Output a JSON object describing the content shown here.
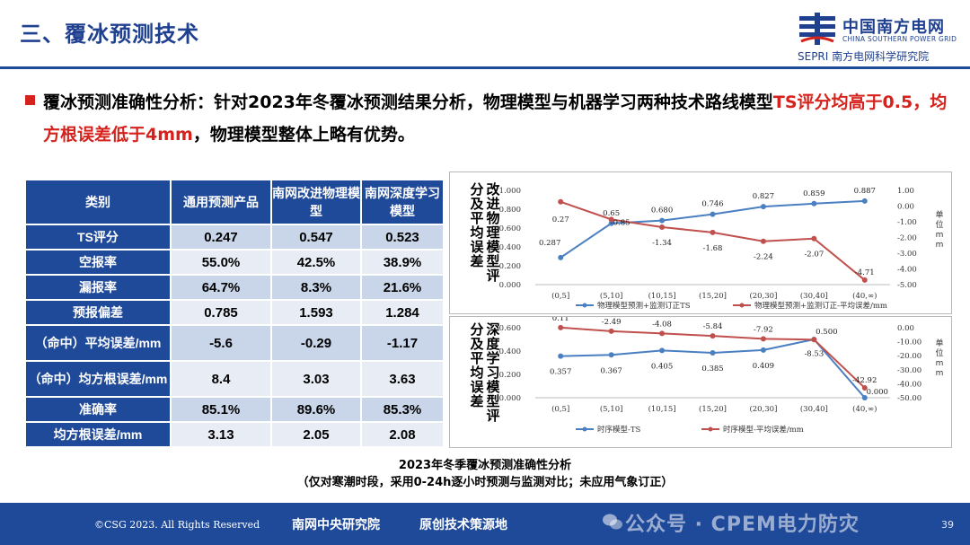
{
  "header": {
    "title": "三、覆冰预测技术",
    "logo_cn": "中国南方电网",
    "logo_en": "CHINA SOUTHERN POWER GRID",
    "logo_sub": "SEPRI 南方电网科学研究院"
  },
  "summary": {
    "part1": "覆冰预测准确性分析：针对2023年冬覆冰预测结果分析，物理模型与机器学习两种技术路线模型",
    "part2_red": "TS评分均高于0.5，均方根误差低于4mm",
    "part3": "，物理模型整体上略有优势。"
  },
  "table": {
    "headers": [
      "类别",
      "通用预测产品",
      "南网改进物理模型",
      "南网深度学习模型"
    ],
    "rows": [
      {
        "label": "TS评分",
        "values": [
          "0.247",
          "0.547",
          "0.523"
        ]
      },
      {
        "label": "空报率",
        "values": [
          "55.0%",
          "42.5%",
          "38.9%"
        ]
      },
      {
        "label": "漏报率",
        "values": [
          "64.7%",
          "8.3%",
          "21.6%"
        ]
      },
      {
        "label": "预报偏差",
        "values": [
          "0.785",
          "1.593",
          "1.284"
        ]
      },
      {
        "label": "（命中）平均误差/mm",
        "values": [
          "-5.6",
          "-0.29",
          "-1.17"
        ]
      },
      {
        "label": "（命中）均方根误差/mm",
        "values": [
          "8.4",
          "3.03",
          "3.63"
        ]
      },
      {
        "label": "准确率",
        "values": [
          "85.1%",
          "89.6%",
          "85.3%"
        ]
      },
      {
        "label": "均方根误差/mm",
        "values": [
          "3.13",
          "2.05",
          "2.08"
        ]
      }
    ]
  },
  "chart_data": [
    {
      "type": "line",
      "side_title": "改进物理模型评分及平均误差",
      "categories": [
        "(0,5]",
        "(5,10]",
        "(10,15]",
        "(15,20]",
        "(20,30]",
        "(30,40]",
        "(40,∞)"
      ],
      "series": [
        {
          "name": "物理模型预测+监测订正TS",
          "axis": "left",
          "color": "#4a7fc1",
          "values": [
            0.287,
            0.65,
            0.68,
            0.746,
            0.827,
            0.859,
            0.887
          ],
          "labels": [
            "0.287",
            "0.65",
            "0.680",
            "0.746",
            "0.827",
            "0.859",
            "0.887"
          ]
        },
        {
          "name": "物理模型预测+监测订正-平均误差/mm",
          "axis": "right",
          "color": "#c0504d",
          "values": [
            0.27,
            -0.85,
            -1.34,
            -1.68,
            -2.24,
            -2.07,
            -4.71
          ],
          "labels": [
            "0.27",
            "-0.85",
            "-1.34",
            "-1.68",
            "-2.24",
            "-2.07",
            "-4.71"
          ]
        }
      ],
      "y_left": {
        "min": 0,
        "max": 1.0,
        "ticks": [
          "0.000",
          "0.200",
          "0.400",
          "0.600",
          "0.800",
          "1.000"
        ]
      },
      "y_right": {
        "min": -5,
        "max": 1,
        "ticks": [
          "-5.00",
          "-4.00",
          "-3.00",
          "-2.00",
          "-1.00",
          "0.00",
          "1.00"
        ],
        "label": "单位mm"
      }
    },
    {
      "type": "line",
      "side_title": "深度学习模型评分及平均误差",
      "categories": [
        "(0,5]",
        "(5,10]",
        "(10,15]",
        "(15,20]",
        "(20,30]",
        "(30,40]",
        "(40,∞)"
      ],
      "series": [
        {
          "name": "时序模型-TS",
          "axis": "left",
          "color": "#4a7fc1",
          "values": [
            0.357,
            0.367,
            0.405,
            0.385,
            0.409,
            0.5,
            0.0
          ],
          "labels": [
            "0.357",
            "0.367",
            "0.405",
            "0.385",
            "0.409",
            "0.500",
            "0.000"
          ]
        },
        {
          "name": "时序模型-平均误差/mm",
          "axis": "right",
          "color": "#c0504d",
          "values": [
            0.11,
            -2.49,
            -4.08,
            -5.84,
            -7.92,
            -8.53,
            -42.92
          ],
          "labels": [
            "0.11",
            "-2.49",
            "-4.08",
            "-5.84",
            "-7.92",
            "-8.53",
            "-42.92"
          ]
        }
      ],
      "y_left": {
        "min": 0,
        "max": 0.6,
        "ticks": [
          "0.000",
          "0.200",
          "0.400",
          "0.600"
        ]
      },
      "y_right": {
        "min": -50,
        "max": 0,
        "ticks": [
          "-50.00",
          "-40.00",
          "-30.00",
          "-20.00",
          "-10.00",
          "0.00"
        ],
        "label": "单位mm"
      }
    }
  ],
  "caption": {
    "line1": "2023年冬季覆冰预测准确性分析",
    "line2": "（仅对寒潮时段，采用0-24h逐小时预测与监测对比；未应用气象订正）"
  },
  "footer": {
    "copyright": "©CSG 2023. All Rights Reserved",
    "slogan1": "南网中央研究院",
    "slogan2": "原创技术策源地",
    "watermark": "公众号 · CPEM电力防灾",
    "page": "39"
  }
}
